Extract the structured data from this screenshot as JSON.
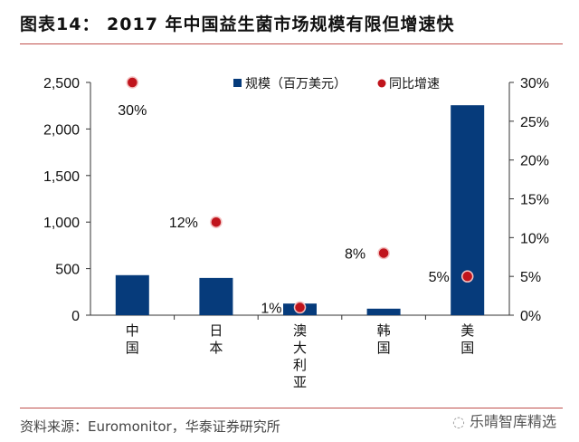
{
  "title": "图表14：  2017 年中国益生菌市场规模有限但增速快",
  "source": "资料来源：Euromonitor，华泰证券研究所",
  "watermark": "乐晴智库精选",
  "chart_data": {
    "type": "bar+scatter",
    "categories": [
      "中国",
      "日本",
      "澳大利亚",
      "韩国",
      "美国"
    ],
    "series": [
      {
        "name": "规模（百万美元）",
        "type": "bar",
        "axis": "left",
        "color": "#063b7b",
        "values": [
          430,
          400,
          125,
          70,
          2255
        ]
      },
      {
        "name": "同比增速",
        "type": "scatter",
        "axis": "right",
        "color": "#c0141c",
        "values": [
          30,
          12,
          1,
          8,
          5
        ],
        "labels": [
          "30%",
          "12%",
          "1%",
          "8%",
          "5%"
        ]
      }
    ],
    "ylim_left": [
      0,
      2500
    ],
    "yticks_left": [
      "0",
      "500",
      "1,000",
      "1,500",
      "2,000",
      "2,500"
    ],
    "ylim_right": [
      0,
      30
    ],
    "yticks_right": [
      "0%",
      "5%",
      "10%",
      "15%",
      "20%",
      "25%",
      "30%"
    ],
    "legend_placement": "top",
    "grid": false
  }
}
